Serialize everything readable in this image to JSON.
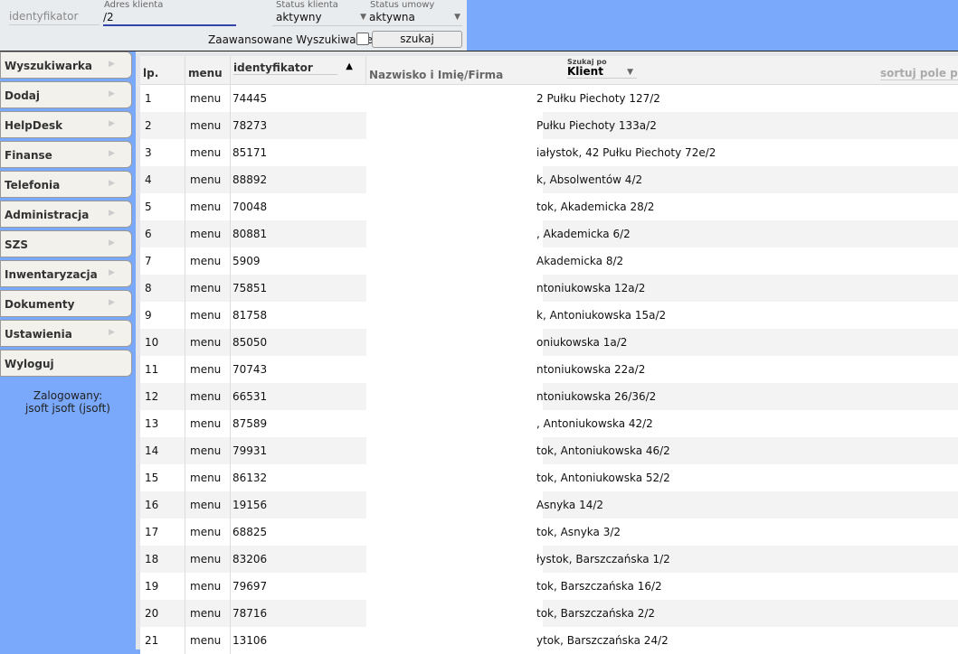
{
  "search": {
    "identyfikator_placeholder": "identyfikator",
    "address_label": "Adres klienta",
    "address_value": "/2",
    "client_status_label": "Status klienta",
    "client_status_value": "aktywny",
    "contract_status_label": "Status umowy",
    "contract_status_value": "aktywna",
    "advanced_label": "Zaawansowane Wyszukiwanie",
    "search_button": "szukaj"
  },
  "sidebar": {
    "items": [
      "Wyszukiwarka",
      "Dodaj",
      "HelpDesk",
      "Finanse",
      "Telefonia",
      "Administracja",
      "SZS",
      "Inwentaryzacja",
      "Dokumenty",
      "Ustawienia",
      "Wyloguj"
    ],
    "logged_label": "Zalogowany:",
    "logged_user": "jsoft jsoft (jsoft)"
  },
  "table": {
    "headers": {
      "lp": "lp.",
      "menu": "menu",
      "id": "identyfikator",
      "name": "Nazwisko i Imię/Firma",
      "search_by_label": "Szukaj po",
      "search_by_value": "Klient",
      "sort": "sortuj pole po"
    },
    "rows": [
      [
        "1",
        "menu",
        "74445",
        "2 Pułku Piechoty 127/2"
      ],
      [
        "2",
        "menu",
        "78273",
        "Pułku Piechoty 133a/2"
      ],
      [
        "3",
        "menu",
        "85171",
        "iałystok, 42 Pułku Piechoty 72e/2"
      ],
      [
        "4",
        "menu",
        "88892",
        "k, Absolwentów 4/2"
      ],
      [
        "5",
        "menu",
        "70048",
        "tok, Akademicka 28/2"
      ],
      [
        "6",
        "menu",
        "80881",
        ", Akademicka 6/2"
      ],
      [
        "7",
        "menu",
        "5909",
        "Akademicka 8/2"
      ],
      [
        "8",
        "menu",
        "75851",
        "ntoniukowska 12a/2"
      ],
      [
        "9",
        "menu",
        "81758",
        "k, Antoniukowska 15a/2"
      ],
      [
        "10",
        "menu",
        "85050",
        "oniukowska 1a/2"
      ],
      [
        "11",
        "menu",
        "70743",
        "ntoniukowska 22a/2"
      ],
      [
        "12",
        "menu",
        "66531",
        "ntoniukowska 26/36/2"
      ],
      [
        "13",
        "menu",
        "87589",
        ", Antoniukowska 42/2"
      ],
      [
        "14",
        "menu",
        "79931",
        "tok, Antoniukowska 46/2"
      ],
      [
        "15",
        "menu",
        "86132",
        "tok, Antoniukowska 52/2"
      ],
      [
        "16",
        "menu",
        "19156",
        "Asnyka 14/2"
      ],
      [
        "17",
        "menu",
        "68825",
        "tok, Asnyka 3/2"
      ],
      [
        "18",
        "menu",
        "83206",
        "łystok, Barszczańska 1/2"
      ],
      [
        "19",
        "menu",
        "79697",
        "tok, Barszczańska 16/2"
      ],
      [
        "20",
        "menu",
        "78716",
        "tok, Barszczańska 2/2"
      ],
      [
        "21",
        "menu",
        "13106",
        "ytok, Barszczańska 24/2"
      ]
    ]
  },
  "colors": {
    "background": "#7aa9fb",
    "panel": "#e9ecef",
    "accent": "#3344aa"
  }
}
